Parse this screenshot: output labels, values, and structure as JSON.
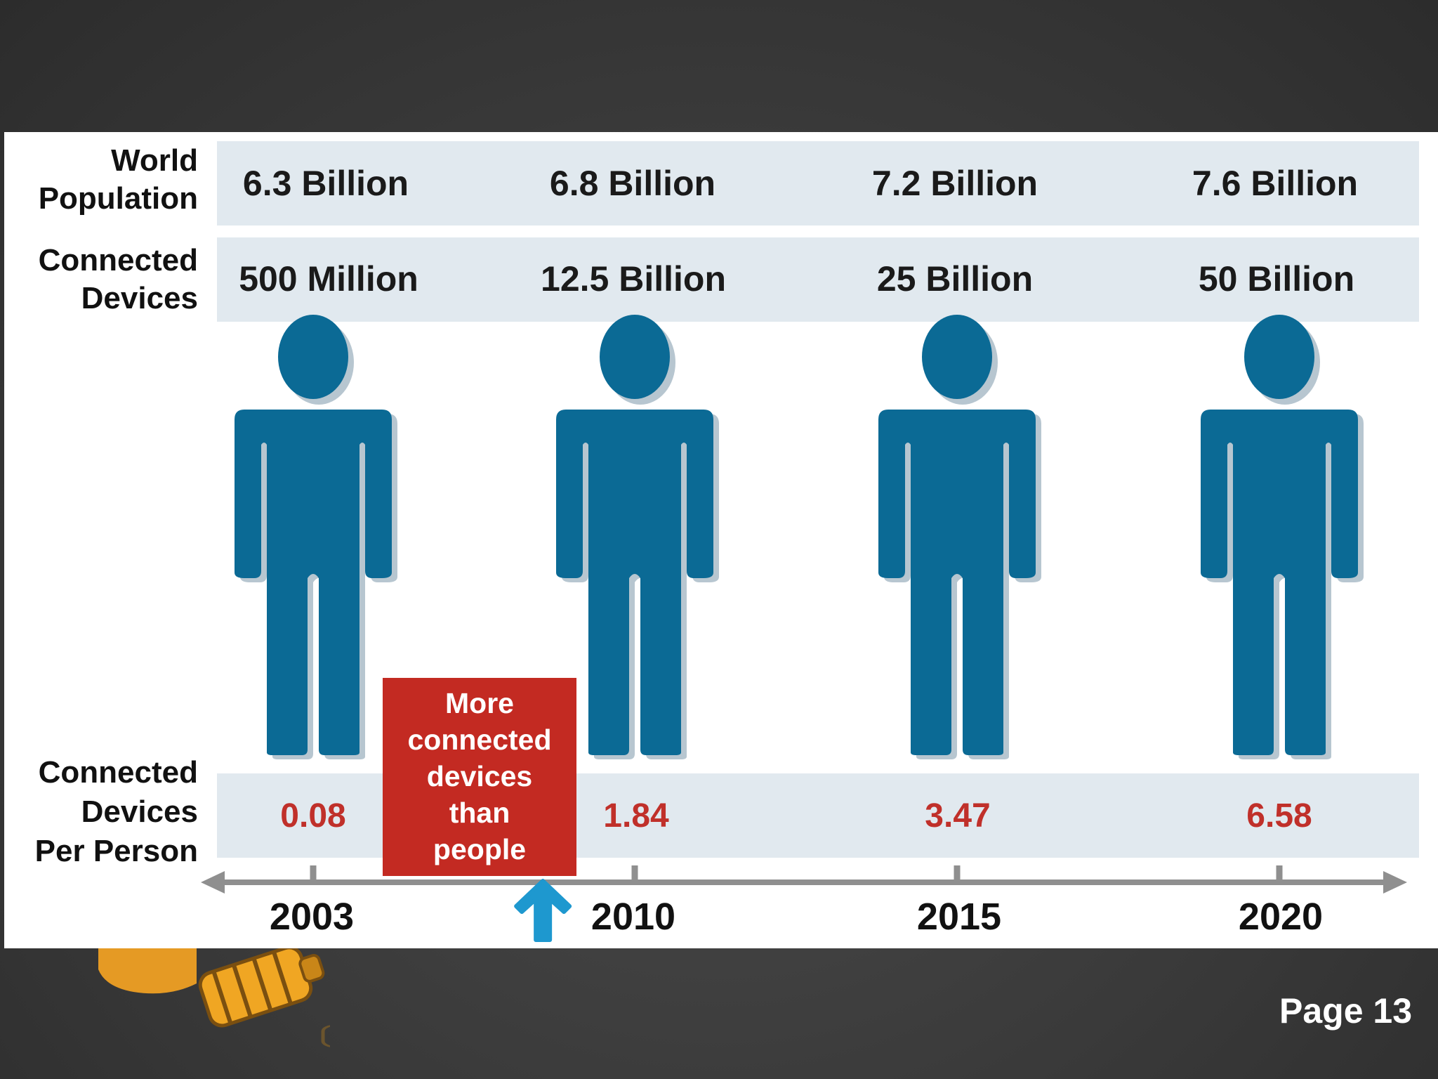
{
  "row_labels": {
    "world_population": [
      "World",
      "Population"
    ],
    "connected_devices": [
      "Connected",
      "Devices"
    ],
    "devices_per_person": [
      "Connected",
      "Devices",
      "Per Person"
    ]
  },
  "chart_data": {
    "type": "table",
    "title": "",
    "years": [
      "2003",
      "2010",
      "2015",
      "2020"
    ],
    "world_population": [
      "6.3 Billion",
      "6.8 Billion",
      "7.2 Billion",
      "7.6 Billion"
    ],
    "world_population_billions": [
      6.3,
      6.8,
      7.2,
      7.6
    ],
    "connected_devices": [
      "500 Million",
      "12.5 Billion",
      "25 Billion",
      "50 Billion"
    ],
    "connected_devices_billions": [
      0.5,
      12.5,
      25,
      50
    ],
    "devices_per_person": [
      "0.08",
      "1.84",
      "3.47",
      "6.58"
    ],
    "annotation": {
      "lines": [
        "More",
        "connected",
        "devices",
        "than",
        "people"
      ],
      "marks_year": 2008
    }
  },
  "footer": {
    "page_label": "Page 13"
  },
  "colors": {
    "figure": "#0b6a95",
    "figure_shadow": "#b7c6d0",
    "band": "#e1e9ef",
    "callout": "#c32a22",
    "arrow": "#1e98cf",
    "timeline": "#8f8f8f",
    "ratio_text": "#c0302a"
  },
  "icons": {
    "person": "person-icon",
    "up_arrow": "up-arrow-icon",
    "bulb": "lightbulb-icon"
  }
}
